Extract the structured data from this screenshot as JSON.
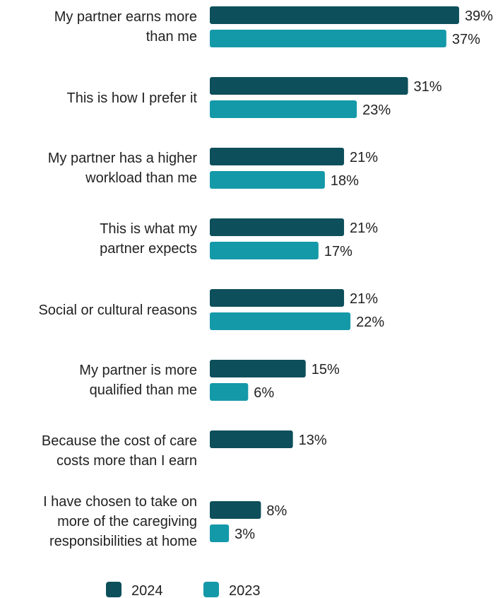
{
  "chart_data": {
    "type": "bar",
    "orientation": "horizontal",
    "categories": [
      [
        "My partner earns more",
        "than me"
      ],
      [
        "This is how I prefer it"
      ],
      [
        "My partner has a higher",
        "workload than me"
      ],
      [
        "This is what my",
        "partner expects"
      ],
      [
        "Social or cultural reasons"
      ],
      [
        "My partner is more",
        "qualified than me"
      ],
      [
        "Because the cost of care",
        "costs more than I earn"
      ],
      [
        "I have chosen to take on",
        "more of the caregiving",
        "responsibilities at home"
      ]
    ],
    "series": [
      {
        "name": "2024",
        "color": "#0d4f5b",
        "values": [
          39,
          31,
          21,
          21,
          21,
          15,
          13,
          8
        ],
        "labels": [
          "39%",
          "31%",
          "21%",
          "21%",
          "21%",
          "15%",
          "13%",
          "8%"
        ]
      },
      {
        "name": "2023",
        "color": "#1499a8",
        "values": [
          37,
          23,
          18,
          17,
          22,
          6,
          null,
          3
        ],
        "labels": [
          "37%",
          "23%",
          "18%",
          "17%",
          "22%",
          "6%",
          "",
          "3%"
        ]
      }
    ],
    "xlim": [
      0,
      40
    ],
    "grid": false,
    "legend": "bottom"
  }
}
